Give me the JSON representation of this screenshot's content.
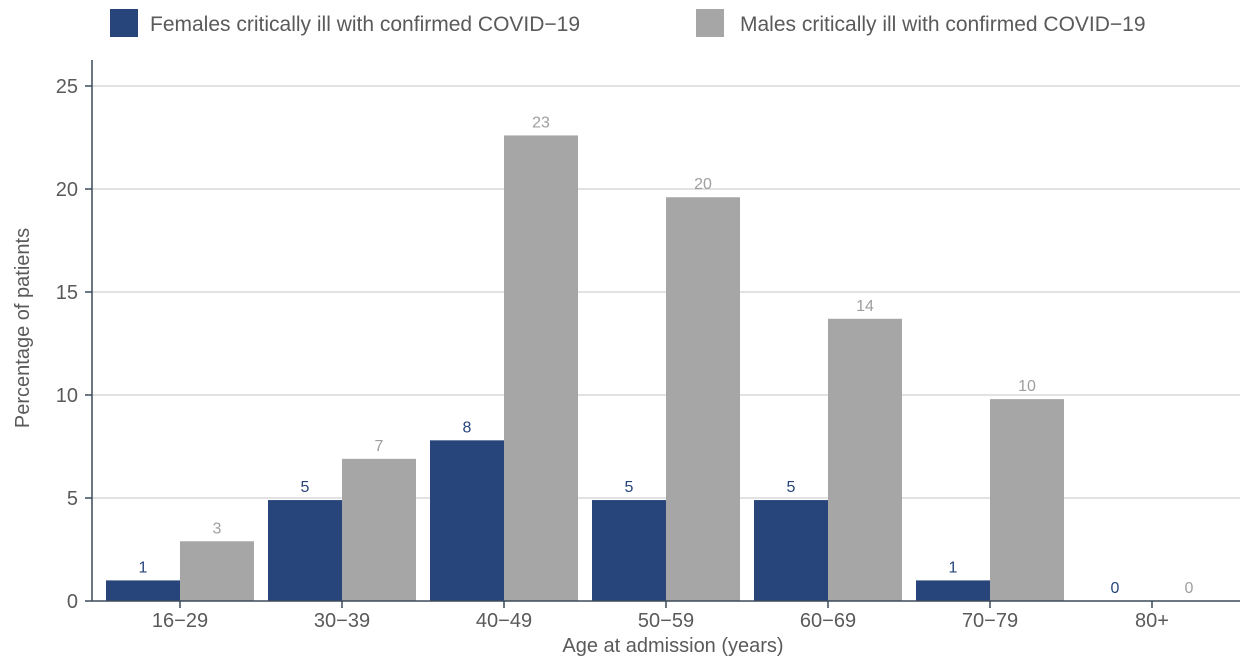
{
  "chart_data": {
    "type": "bar",
    "categories": [
      "16−29",
      "30−39",
      "40−49",
      "50−59",
      "60−69",
      "70−79",
      "80+"
    ],
    "series": [
      {
        "name": "Females critically ill with confirmed COVID−19",
        "color": "#27457a",
        "values": [
          1,
          4.9,
          7.8,
          4.9,
          4.9,
          1,
          0
        ],
        "labels": [
          "1",
          "5",
          "8",
          "5",
          "5",
          "1",
          "0"
        ]
      },
      {
        "name": "Males critically ill with confirmed COVID−19",
        "color": "#a6a6a6",
        "values": [
          2.9,
          6.9,
          22.6,
          19.6,
          13.7,
          9.8,
          0
        ],
        "labels": [
          "3",
          "7",
          "23",
          "20",
          "14",
          "10",
          "0"
        ]
      }
    ],
    "xlabel": "Age at admission (years)",
    "ylabel": "Percentage of patients",
    "ylim": [
      0,
      25
    ],
    "yticks": [
      0,
      5,
      10,
      15,
      20,
      25
    ],
    "grid": true,
    "legend": "top"
  }
}
